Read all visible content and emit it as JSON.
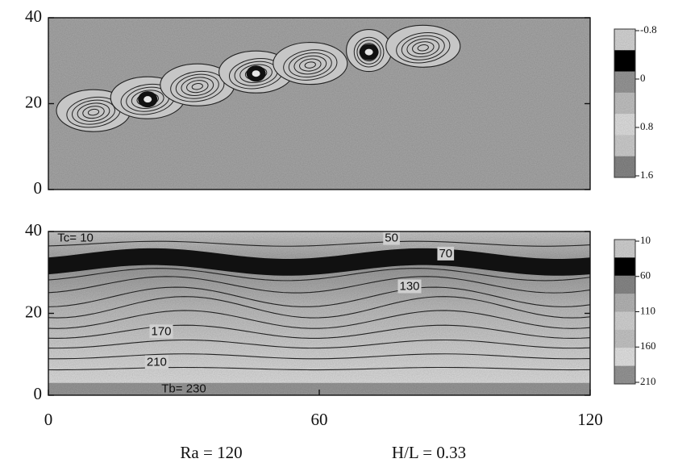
{
  "chart_data": [
    {
      "type": "contour",
      "xlim": [
        0,
        120
      ],
      "ylim": [
        0,
        40
      ],
      "yticks": [
        0,
        20,
        40
      ],
      "colorbar": {
        "lim": [
          -0.8,
          1.6
        ],
        "ticks": [
          -0.8,
          0,
          0.8,
          1.6
        ],
        "colors": [
          "#d8d8d8",
          "#111111",
          "#9a9a9a",
          "#c4c4c4",
          "#e2e2e2",
          "#d0d0d0",
          "#888888"
        ]
      }
    },
    {
      "type": "contour",
      "xlim": [
        0,
        120
      ],
      "ylim": [
        0,
        40
      ],
      "yticks": [
        0,
        20,
        40
      ],
      "xticks": [
        0,
        60,
        120
      ],
      "colorbar": {
        "lim": [
          10,
          210
        ],
        "ticks": [
          10,
          60,
          110,
          160,
          210
        ],
        "colors": [
          "#d4d4d4",
          "#111111",
          "#8a8a8a",
          "#b8b8b8",
          "#d6d6d6",
          "#c8c8c8",
          "#e6e6e6",
          "#999999"
        ]
      },
      "contour_labels": [
        50,
        70,
        130,
        170,
        210
      ],
      "annotations": [
        "Tc= 10",
        "Tb= 230"
      ]
    }
  ],
  "caption": [
    "Ra = 120",
    "H/L = 0.33"
  ]
}
